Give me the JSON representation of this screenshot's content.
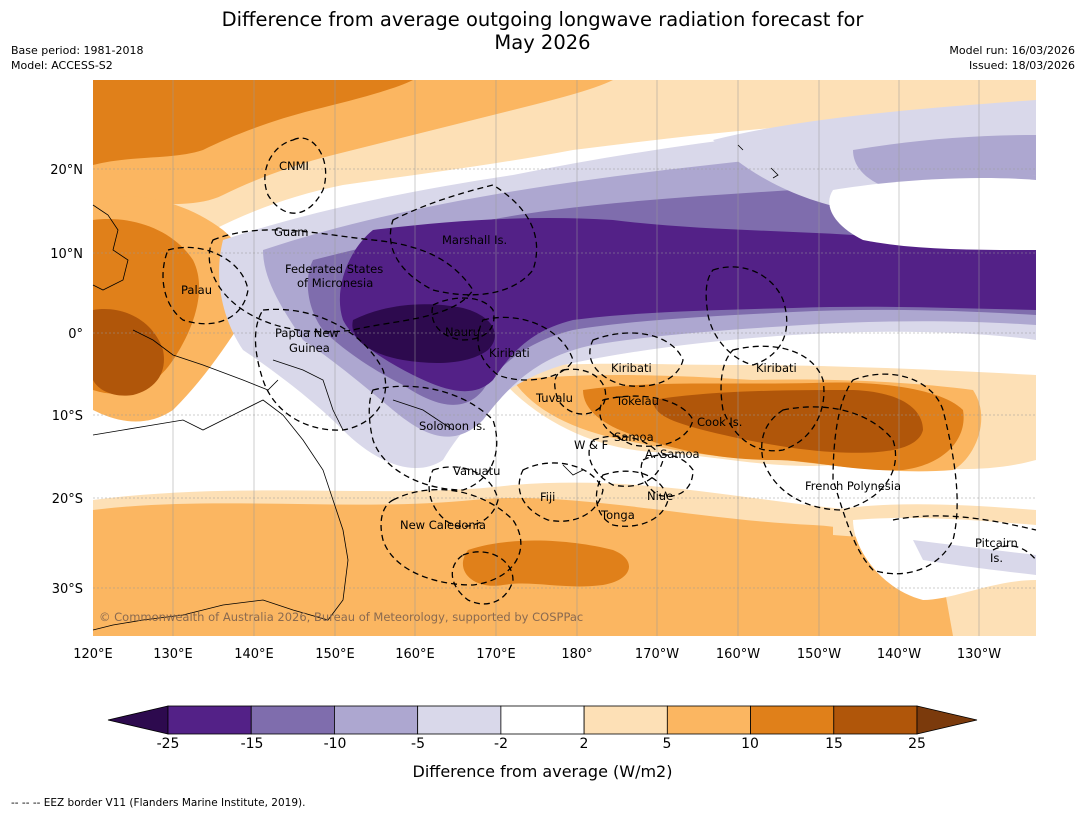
{
  "title": {
    "line1": "Difference from average outgoing longwave radiation forecast for",
    "line2": "May 2026"
  },
  "meta": {
    "base_period": "Base period: 1981-2018",
    "model": "Model: ACCESS-S2",
    "model_run": "Model run: 16/03/2026",
    "issued": "Issued: 18/03/2026"
  },
  "map": {
    "lat_labels": [
      "20°N",
      "10°N",
      "0°",
      "10°S",
      "20°S",
      "30°S"
    ],
    "lon_labels": [
      "120°E",
      "130°E",
      "140°E",
      "150°E",
      "160°E",
      "170°E",
      "180°",
      "170°W",
      "160°W",
      "150°W",
      "140°W",
      "130°W"
    ],
    "regions": {
      "cnmi": "CNMI",
      "guam": "Guam",
      "marshall": "Marshall Is.",
      "fsm_1": "Federated States",
      "fsm_2": "of Micronesia",
      "palau": "Palau",
      "png_1": "Papua New",
      "png_2": "Guinea",
      "nauru": "Nauru",
      "kiribati_w": "Kiribati",
      "kiribati_c": "Kiribati",
      "kiribati_e": "Kiribati",
      "tuvalu": "Tuvalu",
      "tokelau": "Tokelau",
      "cook": "Cook Is.",
      "solomon": "Solomon Is.",
      "samoa": "Samoa",
      "wf": "W & F",
      "asamoa": "A. Samoa",
      "vanuatu": "Vanuatu",
      "fiji": "Fiji",
      "niue": "Niue",
      "tonga": "Tonga",
      "frpoly": "French Polynesia",
      "newcal": "New Caledonia",
      "pitcairn_1": "Pitcairn",
      "pitcairn_2": "Is."
    },
    "copyright": "© Commonwealth of Australia 2026, Bureau of Meteorology, supported by COSPPac"
  },
  "colorbar": {
    "ticks": [
      "-25",
      "-15",
      "-10",
      "-5",
      "-2",
      "2",
      "5",
      "10",
      "15",
      "25"
    ],
    "colors": [
      "#2d0a4e",
      "#532187",
      "#7f6dad",
      "#ada7d0",
      "#d9d8ea",
      "#ffffff",
      "#fde0b6",
      "#fbb661",
      "#e0801a",
      "#b0560a",
      "#7b3a0c"
    ],
    "label": "Difference from average (W/m2)"
  },
  "footnote": "--  --  -- EEZ border V11 (Flanders Marine Institute, 2019)."
}
